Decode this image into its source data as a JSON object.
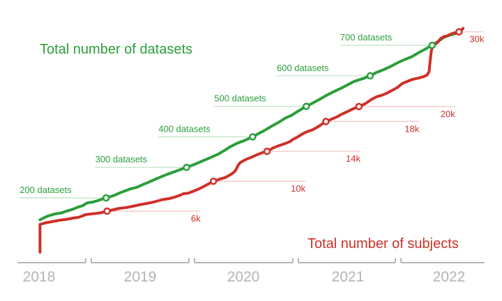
{
  "chart_data": {
    "type": "line",
    "colors": {
      "datasets": "#2b9e3a",
      "subjects": "#ce3029",
      "axis": "#b4b4b4"
    },
    "x_axis": {
      "tick_labels": [
        "2018",
        "2019",
        "2020",
        "2021",
        "2022"
      ],
      "grid": false
    },
    "legend_position": "inline-titles",
    "series": [
      {
        "key": "datasets",
        "name": "Total number of datasets",
        "unit": "datasets",
        "milestones": [
          {
            "label": "200 datasets",
            "t": 2019.17,
            "value": 200,
            "reach": 124
          },
          {
            "label": "300 datasets",
            "t": 2019.95,
            "value": 300,
            "reach": 131
          },
          {
            "label": "400 datasets",
            "t": 2020.59,
            "value": 400,
            "reach": 135
          },
          {
            "label": "500 datasets",
            "t": 2021.11,
            "value": 500,
            "reach": 132
          },
          {
            "label": "600 datasets",
            "t": 2021.73,
            "value": 600,
            "reach": 134
          },
          {
            "label": "700 datasets",
            "t": 2022.33,
            "value": 700,
            "reach": 132
          }
        ],
        "points": [
          [
            2018.53,
            128
          ],
          [
            2018.6,
            140
          ],
          [
            2018.67,
            147
          ],
          [
            2018.74,
            151
          ],
          [
            2018.78,
            156
          ],
          [
            2018.85,
            163
          ],
          [
            2018.9,
            170
          ],
          [
            2018.94,
            174
          ],
          [
            2018.99,
            184
          ],
          [
            2019.04,
            186
          ],
          [
            2019.09,
            191
          ],
          [
            2019.17,
            200
          ],
          [
            2019.24,
            207
          ],
          [
            2019.3,
            216
          ],
          [
            2019.34,
            221
          ],
          [
            2019.41,
            230
          ],
          [
            2019.47,
            235
          ],
          [
            2019.53,
            244
          ],
          [
            2019.58,
            251
          ],
          [
            2019.64,
            260
          ],
          [
            2019.71,
            270
          ],
          [
            2019.76,
            277
          ],
          [
            2019.82,
            284
          ],
          [
            2019.89,
            293
          ],
          [
            2019.95,
            300
          ],
          [
            2020.02,
            309
          ],
          [
            2020.09,
            319
          ],
          [
            2020.14,
            326
          ],
          [
            2020.2,
            335
          ],
          [
            2020.26,
            344
          ],
          [
            2020.32,
            356
          ],
          [
            2020.37,
            367
          ],
          [
            2020.44,
            379
          ],
          [
            2020.51,
            388
          ],
          [
            2020.59,
            400
          ],
          [
            2020.66,
            413
          ],
          [
            2020.71,
            422
          ],
          [
            2020.78,
            436
          ],
          [
            2020.84,
            447
          ],
          [
            2020.91,
            462
          ],
          [
            2020.97,
            471
          ],
          [
            2021.03,
            484
          ],
          [
            2021.11,
            500
          ],
          [
            2021.18,
            512
          ],
          [
            2021.24,
            523
          ],
          [
            2021.3,
            535
          ],
          [
            2021.37,
            547
          ],
          [
            2021.44,
            558
          ],
          [
            2021.51,
            570
          ],
          [
            2021.57,
            581
          ],
          [
            2021.66,
            591
          ],
          [
            2021.73,
            600
          ],
          [
            2021.79,
            611
          ],
          [
            2021.86,
            620
          ],
          [
            2021.93,
            631
          ],
          [
            2021.99,
            642
          ],
          [
            2022.06,
            653
          ],
          [
            2022.13,
            662
          ],
          [
            2022.2,
            676
          ],
          [
            2022.26,
            687
          ],
          [
            2022.33,
            700
          ],
          [
            2022.4,
            716
          ],
          [
            2022.45,
            727
          ],
          [
            2022.5,
            733
          ],
          [
            2022.55,
            738
          ],
          [
            2022.59,
            740
          ]
        ]
      },
      {
        "key": "subjects",
        "name": "Total number of subjects",
        "unit": "subjects",
        "milestones": [
          {
            "label": "6k",
            "t": 2019.18,
            "value": 6000,
            "reach": 134
          },
          {
            "label": "10k",
            "t": 2020.21,
            "value": 10000,
            "reach": 132
          },
          {
            "label": "14k",
            "t": 2020.73,
            "value": 14000,
            "reach": 134
          },
          {
            "label": "18k",
            "t": 2021.3,
            "value": 18000,
            "reach": 134
          },
          {
            "label": "20k",
            "t": 2021.62,
            "value": 20000,
            "reach": 138
          },
          {
            "label": "30k",
            "t": 2022.59,
            "value": 30000,
            "reach": 36
          }
        ],
        "points": [
          [
            2018.53,
            500
          ],
          [
            2018.53,
            4230
          ],
          [
            2018.58,
            4420
          ],
          [
            2018.65,
            4600
          ],
          [
            2018.72,
            4790
          ],
          [
            2018.78,
            4880
          ],
          [
            2018.85,
            5070
          ],
          [
            2018.9,
            5160
          ],
          [
            2018.94,
            5350
          ],
          [
            2018.97,
            5530
          ],
          [
            2019.03,
            5630
          ],
          [
            2019.09,
            5720
          ],
          [
            2019.13,
            5810
          ],
          [
            2019.18,
            6000
          ],
          [
            2019.24,
            6190
          ],
          [
            2019.3,
            6370
          ],
          [
            2019.36,
            6470
          ],
          [
            2019.43,
            6650
          ],
          [
            2019.49,
            6840
          ],
          [
            2019.56,
            7020
          ],
          [
            2019.63,
            7210
          ],
          [
            2019.68,
            7400
          ],
          [
            2019.73,
            7580
          ],
          [
            2019.78,
            7670
          ],
          [
            2019.83,
            7860
          ],
          [
            2019.89,
            8140
          ],
          [
            2019.92,
            8330
          ],
          [
            2019.97,
            8420
          ],
          [
            2020.02,
            8700
          ],
          [
            2020.07,
            8980
          ],
          [
            2020.11,
            9260
          ],
          [
            2020.16,
            9630
          ],
          [
            2020.21,
            10000
          ],
          [
            2020.27,
            10280
          ],
          [
            2020.32,
            10470
          ],
          [
            2020.37,
            10840
          ],
          [
            2020.41,
            11210
          ],
          [
            2020.43,
            11580
          ],
          [
            2020.45,
            12140
          ],
          [
            2020.47,
            12510
          ],
          [
            2020.52,
            12880
          ],
          [
            2020.57,
            13160
          ],
          [
            2020.63,
            13530
          ],
          [
            2020.68,
            13810
          ],
          [
            2020.73,
            14000
          ],
          [
            2020.79,
            14470
          ],
          [
            2020.84,
            14740
          ],
          [
            2020.9,
            15020
          ],
          [
            2020.95,
            15300
          ],
          [
            2020.98,
            15580
          ],
          [
            2021.03,
            15950
          ],
          [
            2021.07,
            16330
          ],
          [
            2021.11,
            16600
          ],
          [
            2021.17,
            16880
          ],
          [
            2021.22,
            17260
          ],
          [
            2021.26,
            17630
          ],
          [
            2021.3,
            18000
          ],
          [
            2021.35,
            18290
          ],
          [
            2021.4,
            18570
          ],
          [
            2021.45,
            18950
          ],
          [
            2021.51,
            19330
          ],
          [
            2021.55,
            19620
          ],
          [
            2021.62,
            20000
          ],
          [
            2021.68,
            20370
          ],
          [
            2021.74,
            20930
          ],
          [
            2021.79,
            21310
          ],
          [
            2021.84,
            21500
          ],
          [
            2021.89,
            21780
          ],
          [
            2021.94,
            22150
          ],
          [
            2021.99,
            22520
          ],
          [
            2022.04,
            23080
          ],
          [
            2022.09,
            23360
          ],
          [
            2022.14,
            23640
          ],
          [
            2022.2,
            23830
          ],
          [
            2022.25,
            24020
          ],
          [
            2022.28,
            24210
          ],
          [
            2022.3,
            24670
          ],
          [
            2022.31,
            26070
          ],
          [
            2022.32,
            27290
          ],
          [
            2022.33,
            27940
          ],
          [
            2022.36,
            28320
          ],
          [
            2022.39,
            28690
          ],
          [
            2022.41,
            29070
          ],
          [
            2022.44,
            29350
          ],
          [
            2022.47,
            29440
          ],
          [
            2022.5,
            29630
          ],
          [
            2022.53,
            29810
          ],
          [
            2022.56,
            29910
          ],
          [
            2022.59,
            30000
          ],
          [
            2022.61,
            30190
          ],
          [
            2022.63,
            30470
          ]
        ]
      }
    ]
  }
}
